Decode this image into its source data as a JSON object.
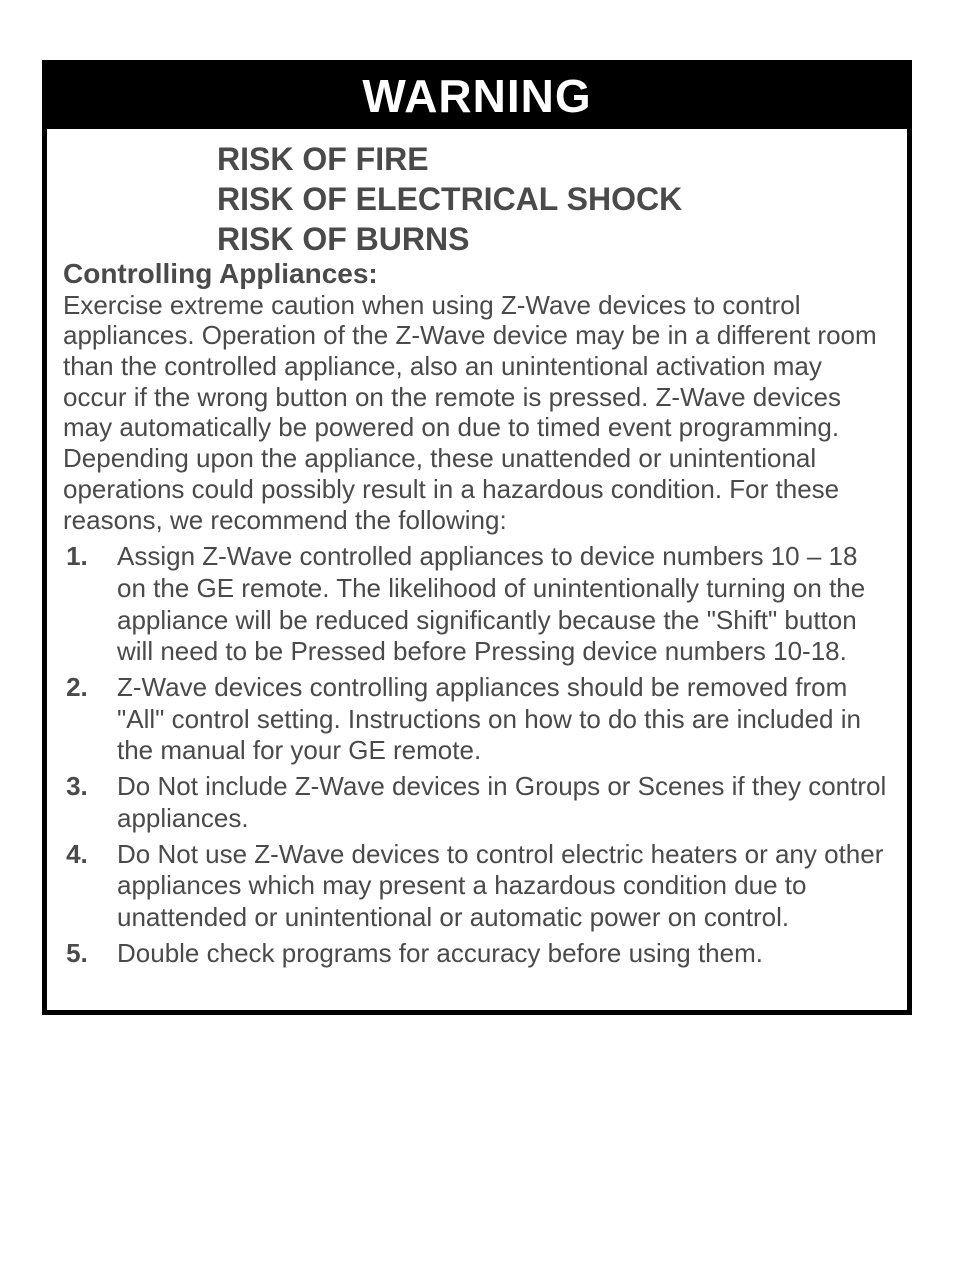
{
  "colors": {
    "bg": "#ffffff",
    "text": "#4a4a4a",
    "header_bg": "#000000",
    "header_fg": "#ffffff",
    "border": "#000000"
  },
  "typography": {
    "header_fontsize": 46,
    "subhead_fontsize": 32,
    "section_title_fontsize": 28,
    "body_fontsize": 26,
    "font_family": "Arial"
  },
  "warning": {
    "header": "WARNING",
    "risks": [
      "RISK OF FIRE",
      "RISK OF ELECTRICAL SHOCK",
      "RISK OF BURNS"
    ],
    "section_title": "Controlling Appliances:",
    "intro": "Exercise extreme caution when using Z-Wave devices to control appliances.  Operation of the Z-Wave device may be in a different room than the controlled appliance, also an unintentional activation may occur if the wrong button on the remote is pressed.  Z-Wave devices may automatically be powered on due to timed event programming. Depending upon the appliance, these unattended or unintentional operations could possibly result in a hazardous condition.  For these reasons, we recommend the following:",
    "items": [
      "Assign Z-Wave controlled appliances to device numbers 10 – 18 on the GE remote.  The likelihood of unintentionally turning on the appliance will be reduced significantly because the \"Shift\" button will need to be Pressed before Pressing device numbers 10-18.",
      "Z-Wave devices controlling appliances should be removed from \"All\" control setting.  Instructions on how to do this are included in the manual for your GE remote.",
      "Do Not include Z-Wave devices in Groups or Scenes if they control appliances.",
      "Do Not use Z-Wave devices to control electric heaters or any other appliances which may present a hazardous condition due to unattended or unintentional or automatic power on control.",
      "Double check programs for accuracy before using them."
    ]
  }
}
